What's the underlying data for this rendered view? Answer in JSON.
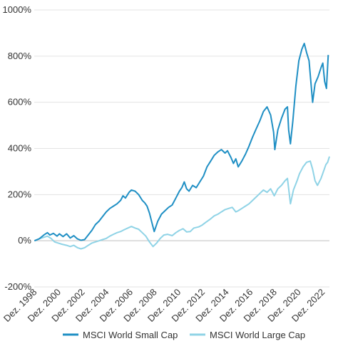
{
  "chart_data": {
    "type": "line",
    "title": "",
    "xlabel": "",
    "ylabel": "",
    "xlim": [
      1998.9,
      2023.5
    ],
    "ylim": [
      -200,
      1000
    ],
    "grid": "horizontal",
    "legend": "bottom",
    "y_ticks": [
      {
        "value": 1000,
        "label": "1000%"
      },
      {
        "value": 800,
        "label": "800%"
      },
      {
        "value": 600,
        "label": "600%"
      },
      {
        "value": 400,
        "label": "400%"
      },
      {
        "value": 200,
        "label": "200%"
      },
      {
        "value": 0,
        "label": "0%"
      },
      {
        "value": -200,
        "label": "-200%"
      }
    ],
    "x_ticks": [
      {
        "value": 1998.92,
        "label": "Dez. 1998"
      },
      {
        "value": 2000.92,
        "label": "Dez. 2000"
      },
      {
        "value": 2002.92,
        "label": "Dez. 2002"
      },
      {
        "value": 2004.92,
        "label": "Dez. 2004"
      },
      {
        "value": 2006.92,
        "label": "Dez. 2006"
      },
      {
        "value": 2008.92,
        "label": "Dez. 2008"
      },
      {
        "value": 2010.92,
        "label": "Dez. 2010"
      },
      {
        "value": 2012.92,
        "label": "Dez. 2012"
      },
      {
        "value": 2014.92,
        "label": "Dez. 2014"
      },
      {
        "value": 2016.92,
        "label": "Dez. 2016"
      },
      {
        "value": 2018.92,
        "label": "Dez. 2018"
      },
      {
        "value": 2020.92,
        "label": "Dez. 2020"
      },
      {
        "value": 2022.92,
        "label": "Dez. 2022"
      }
    ],
    "series": [
      {
        "name": "MSCI World Small Cap",
        "color": "#1f8fc4",
        "points": [
          [
            1998.92,
            0
          ],
          [
            1999.3,
            8
          ],
          [
            1999.7,
            25
          ],
          [
            2000.0,
            35
          ],
          [
            2000.2,
            25
          ],
          [
            2000.5,
            32
          ],
          [
            2000.8,
            20
          ],
          [
            2001.0,
            30
          ],
          [
            2001.3,
            18
          ],
          [
            2001.6,
            30
          ],
          [
            2001.9,
            12
          ],
          [
            2002.2,
            22
          ],
          [
            2002.5,
            8
          ],
          [
            2002.8,
            2
          ],
          [
            2003.1,
            5
          ],
          [
            2003.4,
            25
          ],
          [
            2003.7,
            45
          ],
          [
            2004.0,
            70
          ],
          [
            2004.3,
            85
          ],
          [
            2004.6,
            105
          ],
          [
            2004.9,
            125
          ],
          [
            2005.2,
            140
          ],
          [
            2005.5,
            150
          ],
          [
            2005.8,
            160
          ],
          [
            2006.1,
            175
          ],
          [
            2006.3,
            195
          ],
          [
            2006.5,
            185
          ],
          [
            2006.8,
            210
          ],
          [
            2007.0,
            220
          ],
          [
            2007.3,
            215
          ],
          [
            2007.6,
            200
          ],
          [
            2007.9,
            175
          ],
          [
            2008.1,
            165
          ],
          [
            2008.3,
            150
          ],
          [
            2008.5,
            120
          ],
          [
            2008.7,
            80
          ],
          [
            2008.9,
            40
          ],
          [
            2009.2,
            85
          ],
          [
            2009.5,
            115
          ],
          [
            2009.8,
            130
          ],
          [
            2010.1,
            145
          ],
          [
            2010.4,
            155
          ],
          [
            2010.7,
            185
          ],
          [
            2011.0,
            215
          ],
          [
            2011.2,
            230
          ],
          [
            2011.4,
            255
          ],
          [
            2011.6,
            225
          ],
          [
            2011.8,
            215
          ],
          [
            2012.1,
            240
          ],
          [
            2012.4,
            230
          ],
          [
            2012.7,
            255
          ],
          [
            2013.0,
            280
          ],
          [
            2013.3,
            320
          ],
          [
            2013.6,
            345
          ],
          [
            2013.9,
            370
          ],
          [
            2014.2,
            385
          ],
          [
            2014.5,
            395
          ],
          [
            2014.8,
            380
          ],
          [
            2015.0,
            390
          ],
          [
            2015.3,
            360
          ],
          [
            2015.5,
            335
          ],
          [
            2015.7,
            355
          ],
          [
            2015.9,
            320
          ],
          [
            2016.2,
            345
          ],
          [
            2016.5,
            375
          ],
          [
            2016.8,
            410
          ],
          [
            2017.1,
            450
          ],
          [
            2017.4,
            485
          ],
          [
            2017.7,
            520
          ],
          [
            2018.0,
            560
          ],
          [
            2018.3,
            580
          ],
          [
            2018.6,
            545
          ],
          [
            2018.85,
            470
          ],
          [
            2018.95,
            395
          ],
          [
            2019.2,
            480
          ],
          [
            2019.5,
            530
          ],
          [
            2019.8,
            570
          ],
          [
            2020.0,
            580
          ],
          [
            2020.1,
            480
          ],
          [
            2020.25,
            420
          ],
          [
            2020.45,
            520
          ],
          [
            2020.7,
            670
          ],
          [
            2020.95,
            780
          ],
          [
            2021.2,
            830
          ],
          [
            2021.4,
            855
          ],
          [
            2021.6,
            815
          ],
          [
            2021.8,
            780
          ],
          [
            2021.95,
            690
          ],
          [
            2022.1,
            600
          ],
          [
            2022.3,
            680
          ],
          [
            2022.55,
            710
          ],
          [
            2022.8,
            750
          ],
          [
            2022.95,
            770
          ],
          [
            2023.1,
            690
          ],
          [
            2023.25,
            660
          ],
          [
            2023.4,
            805
          ]
        ]
      },
      {
        "name": "MSCI World Large Cap",
        "color": "#8fd3e6",
        "points": [
          [
            1998.92,
            0
          ],
          [
            1999.3,
            8
          ],
          [
            1999.7,
            15
          ],
          [
            2000.0,
            20
          ],
          [
            2000.3,
            10
          ],
          [
            2000.6,
            -5
          ],
          [
            2000.9,
            -10
          ],
          [
            2001.2,
            -15
          ],
          [
            2001.6,
            -20
          ],
          [
            2001.9,
            -25
          ],
          [
            2002.2,
            -20
          ],
          [
            2002.5,
            -30
          ],
          [
            2002.8,
            -35
          ],
          [
            2003.1,
            -30
          ],
          [
            2003.4,
            -20
          ],
          [
            2003.7,
            -10
          ],
          [
            2004.0,
            -5
          ],
          [
            2004.3,
            0
          ],
          [
            2004.6,
            5
          ],
          [
            2004.9,
            10
          ],
          [
            2005.2,
            20
          ],
          [
            2005.5,
            28
          ],
          [
            2005.8,
            35
          ],
          [
            2006.1,
            40
          ],
          [
            2006.4,
            48
          ],
          [
            2006.7,
            55
          ],
          [
            2007.0,
            62
          ],
          [
            2007.3,
            55
          ],
          [
            2007.6,
            50
          ],
          [
            2007.9,
            35
          ],
          [
            2008.2,
            20
          ],
          [
            2008.5,
            -5
          ],
          [
            2008.8,
            -25
          ],
          [
            2009.1,
            -10
          ],
          [
            2009.4,
            10
          ],
          [
            2009.7,
            25
          ],
          [
            2010.0,
            28
          ],
          [
            2010.4,
            22
          ],
          [
            2010.7,
            35
          ],
          [
            2011.0,
            45
          ],
          [
            2011.3,
            52
          ],
          [
            2011.6,
            38
          ],
          [
            2011.9,
            40
          ],
          [
            2012.2,
            55
          ],
          [
            2012.6,
            60
          ],
          [
            2012.9,
            68
          ],
          [
            2013.2,
            80
          ],
          [
            2013.6,
            95
          ],
          [
            2013.9,
            108
          ],
          [
            2014.2,
            115
          ],
          [
            2014.5,
            125
          ],
          [
            2014.8,
            135
          ],
          [
            2015.1,
            140
          ],
          [
            2015.4,
            145
          ],
          [
            2015.7,
            125
          ],
          [
            2015.9,
            130
          ],
          [
            2016.2,
            140
          ],
          [
            2016.5,
            150
          ],
          [
            2016.8,
            160
          ],
          [
            2017.1,
            175
          ],
          [
            2017.4,
            190
          ],
          [
            2017.7,
            205
          ],
          [
            2018.0,
            220
          ],
          [
            2018.3,
            210
          ],
          [
            2018.6,
            225
          ],
          [
            2018.9,
            195
          ],
          [
            2019.2,
            225
          ],
          [
            2019.5,
            240
          ],
          [
            2019.8,
            260
          ],
          [
            2020.0,
            270
          ],
          [
            2020.15,
            205
          ],
          [
            2020.25,
            160
          ],
          [
            2020.5,
            220
          ],
          [
            2020.8,
            260
          ],
          [
            2021.0,
            290
          ],
          [
            2021.3,
            320
          ],
          [
            2021.6,
            340
          ],
          [
            2021.9,
            345
          ],
          [
            2022.1,
            310
          ],
          [
            2022.3,
            260
          ],
          [
            2022.5,
            240
          ],
          [
            2022.8,
            270
          ],
          [
            2023.0,
            300
          ],
          [
            2023.2,
            330
          ],
          [
            2023.35,
            340
          ],
          [
            2023.5,
            365
          ]
        ]
      }
    ]
  }
}
